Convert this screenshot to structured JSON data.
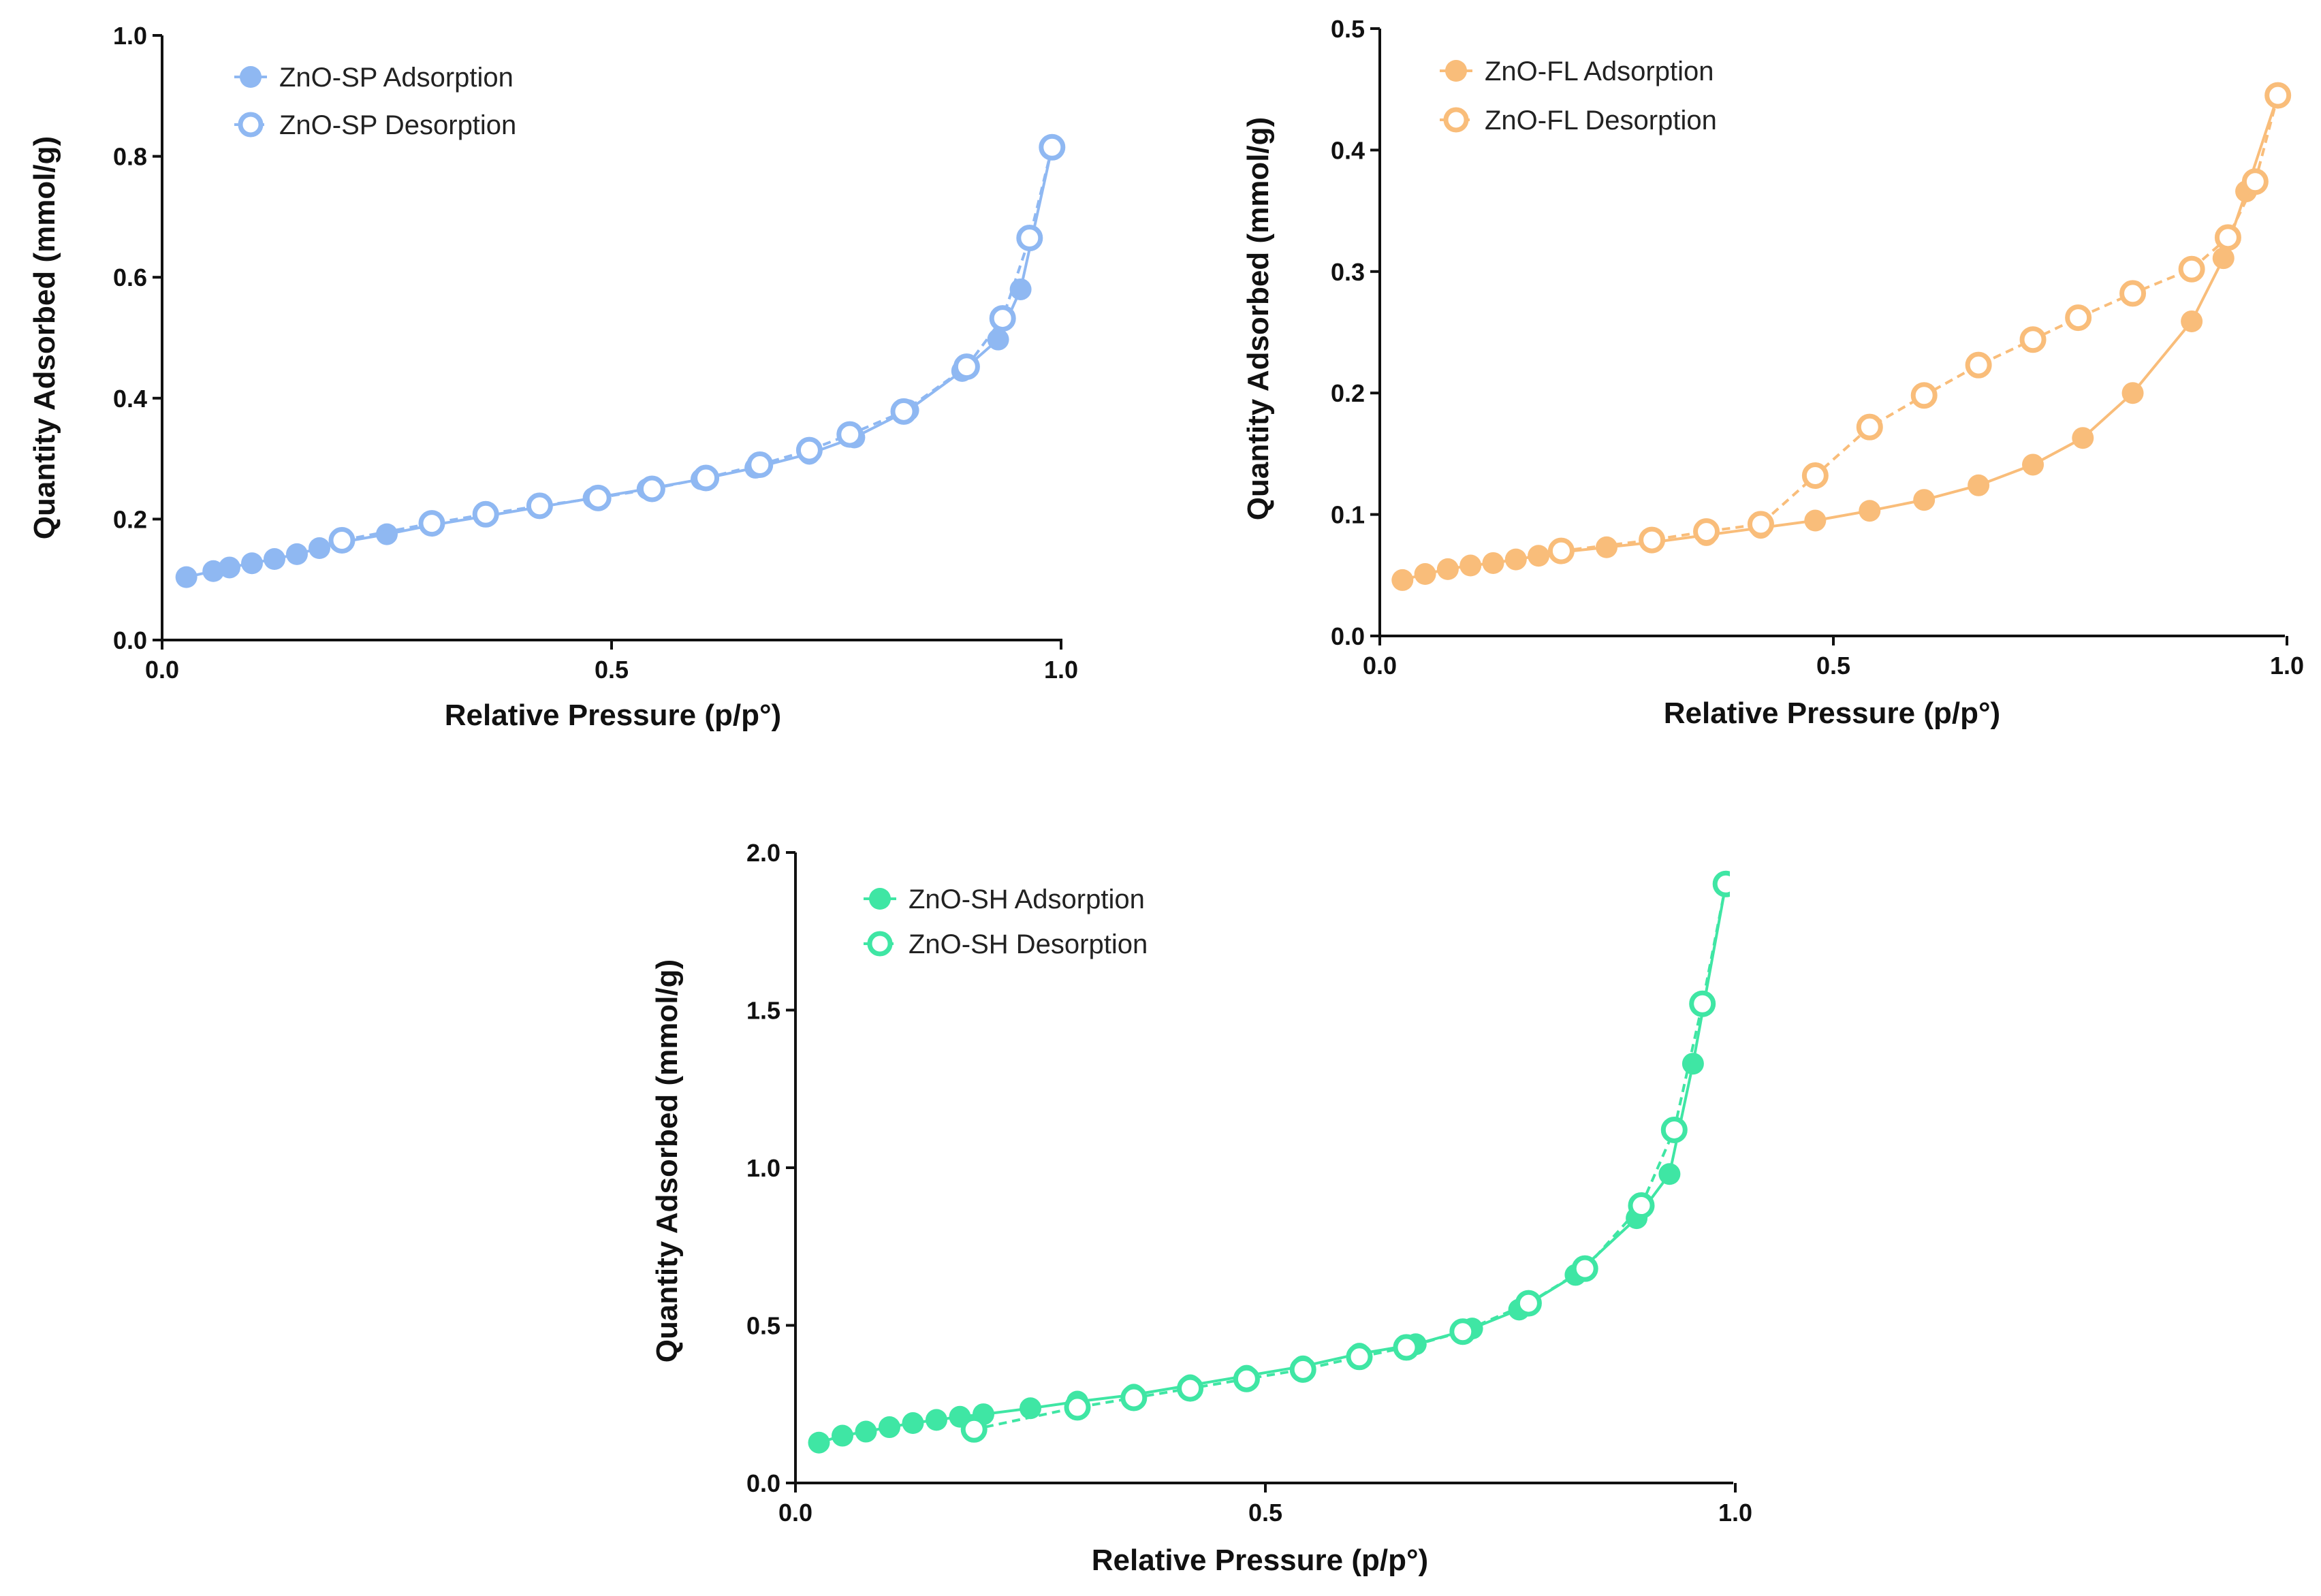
{
  "chart_data": [
    {
      "id": "sp",
      "type": "line",
      "color": "#8fb8f2",
      "xlabel": "Relative Pressure (p/p°)",
      "ylabel": "Quantity Adsorbed (mmol/g)",
      "xlim": [
        0,
        1.0
      ],
      "ylim": [
        0,
        1.0
      ],
      "xticks": [
        0,
        0.5,
        1.0
      ],
      "xtick_labels": [
        "0.0",
        "0.5",
        "1.0"
      ],
      "yticks": [
        0,
        0.2,
        0.4,
        0.6,
        0.8,
        1.0
      ],
      "ytick_labels": [
        "0.0",
        "0.2",
        "0.4",
        "0.6",
        "0.8",
        "1.0"
      ],
      "legend_position": "top-left",
      "series": [
        {
          "name": "ZnO-SP Adsorption",
          "marker": "filled",
          "line": "solid",
          "x": [
            0.027,
            0.057,
            0.075,
            0.1,
            0.125,
            0.15,
            0.175,
            0.2,
            0.25,
            0.3,
            0.36,
            0.42,
            0.48,
            0.54,
            0.6,
            0.66,
            0.72,
            0.77,
            0.83,
            0.89,
            0.93,
            0.955,
            0.99
          ],
          "y": [
            0.104,
            0.114,
            0.12,
            0.127,
            0.134,
            0.142,
            0.152,
            0.162,
            0.175,
            0.19,
            0.205,
            0.22,
            0.235,
            0.25,
            0.266,
            0.285,
            0.308,
            0.335,
            0.38,
            0.445,
            0.497,
            0.58,
            0.815
          ]
        },
        {
          "name": "ZnO-SP Desorption",
          "marker": "open",
          "line": "dashed",
          "x": [
            0.99,
            0.965,
            0.935,
            0.895,
            0.825,
            0.765,
            0.72,
            0.665,
            0.605,
            0.545,
            0.485,
            0.42,
            0.36,
            0.3,
            0.2
          ],
          "y": [
            0.815,
            0.665,
            0.532,
            0.452,
            0.378,
            0.34,
            0.314,
            0.29,
            0.268,
            0.25,
            0.235,
            0.222,
            0.208,
            0.193,
            0.165
          ]
        }
      ]
    },
    {
      "id": "fl",
      "type": "line",
      "color": "#f9bd7a",
      "xlabel": "Relative Pressure (p/p°)",
      "ylabel": "Quantity Adsorbed (mmol/g)",
      "xlim": [
        0,
        1.0
      ],
      "ylim": [
        0,
        0.5
      ],
      "xticks": [
        0,
        0.5,
        1.0
      ],
      "xtick_labels": [
        "0.0",
        "0.5",
        "1.0"
      ],
      "yticks": [
        0,
        0.1,
        0.2,
        0.3,
        0.4,
        0.5
      ],
      "ytick_labels": [
        "0.0",
        "0.1",
        "0.2",
        "0.3",
        "0.4",
        "0.5"
      ],
      "legend_position": "top-left",
      "series": [
        {
          "name": "ZnO-FL Adsorption",
          "marker": "filled",
          "line": "solid",
          "x": [
            0.025,
            0.05,
            0.075,
            0.1,
            0.125,
            0.15,
            0.175,
            0.2,
            0.25,
            0.3,
            0.36,
            0.42,
            0.48,
            0.54,
            0.6,
            0.66,
            0.72,
            0.775,
            0.83,
            0.895,
            0.93,
            0.955,
            0.99
          ],
          "y": [
            0.046,
            0.051,
            0.055,
            0.058,
            0.06,
            0.063,
            0.066,
            0.069,
            0.073,
            0.077,
            0.083,
            0.089,
            0.095,
            0.103,
            0.112,
            0.124,
            0.141,
            0.163,
            0.2,
            0.259,
            0.311,
            0.366,
            0.445
          ]
        },
        {
          "name": "ZnO-FL Desorption",
          "marker": "open",
          "line": "dashed",
          "x": [
            0.99,
            0.965,
            0.935,
            0.895,
            0.83,
            0.77,
            0.72,
            0.66,
            0.6,
            0.54,
            0.48,
            0.42,
            0.36,
            0.3,
            0.2
          ],
          "y": [
            0.445,
            0.374,
            0.328,
            0.302,
            0.282,
            0.262,
            0.244,
            0.223,
            0.198,
            0.172,
            0.132,
            0.092,
            0.086,
            0.079,
            0.07
          ]
        }
      ]
    },
    {
      "id": "sh",
      "type": "line",
      "color": "#3fe6a4",
      "xlabel": "Relative Pressure (p/p°)",
      "ylabel": "Quantity Adsorbed (mmol/g)",
      "xlim": [
        0,
        1.0
      ],
      "ylim": [
        0,
        2.0
      ],
      "xticks": [
        0,
        0.5,
        1.0
      ],
      "xtick_labels": [
        "0.0",
        "0.5",
        "1.0"
      ],
      "yticks": [
        0,
        0.5,
        1.0,
        1.5,
        2.0
      ],
      "ytick_labels": [
        "0.0",
        "0.5",
        "1.0",
        "1.5",
        "2.0"
      ],
      "legend_position": "top-left",
      "series": [
        {
          "name": "ZnO-SH Adsorption",
          "marker": "filled",
          "line": "solid",
          "x": [
            0.025,
            0.05,
            0.075,
            0.1,
            0.125,
            0.15,
            0.175,
            0.2,
            0.25,
            0.3,
            0.36,
            0.42,
            0.48,
            0.54,
            0.6,
            0.66,
            0.72,
            0.77,
            0.83,
            0.895,
            0.93,
            0.955,
            0.99
          ],
          "y": [
            0.128,
            0.15,
            0.163,
            0.177,
            0.19,
            0.2,
            0.21,
            0.218,
            0.237,
            0.258,
            0.28,
            0.31,
            0.34,
            0.37,
            0.41,
            0.44,
            0.49,
            0.55,
            0.66,
            0.84,
            0.98,
            1.33,
            1.9
          ]
        },
        {
          "name": "ZnO-SH Desorption",
          "marker": "open",
          "line": "dashed",
          "x": [
            0.99,
            0.965,
            0.935,
            0.9,
            0.84,
            0.78,
            0.71,
            0.65,
            0.6,
            0.54,
            0.48,
            0.42,
            0.36,
            0.3,
            0.19
          ],
          "y": [
            1.9,
            1.52,
            1.12,
            0.88,
            0.68,
            0.57,
            0.48,
            0.43,
            0.4,
            0.36,
            0.33,
            0.3,
            0.27,
            0.24,
            0.17
          ]
        }
      ]
    }
  ]
}
